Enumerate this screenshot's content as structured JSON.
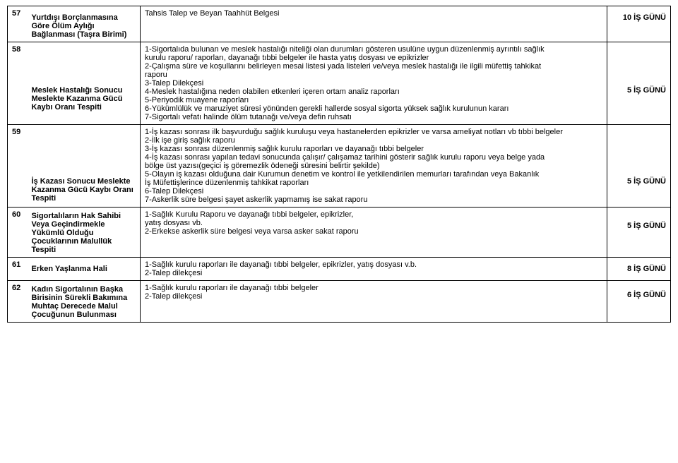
{
  "rows": [
    {
      "no": "57",
      "title": "Yurtdışı Borçlanmasına Göre Ölüm Aylığı Bağlanması (Taşra Birimi)",
      "desc": "Tahsis Talep ve Beyan Taahhüt Belgesi",
      "duration": "10 İŞ GÜNÜ"
    },
    {
      "no": "58",
      "title": "Meslek Hastalığı Sonucu Meslekte Kazanma Gücü Kaybı Oranı Tespiti",
      "desc": "1-Sigortalıda bulunan ve meslek hastalığı niteliği olan durumları gösteren usulüne uygun düzenlenmiş ayrıntılı sağlık\nkurulu raporu/ raporları, dayanağı tıbbi belgeler ile hasta yatış dosyası ve epikrizler\n2-Çalışma süre ve koşullarını belirleyen mesai listesi yada listeleri ve/veya meslek hastalığı ile ilgili müfettiş tahkikat\nraporu\n3-Talep Dilekçesi\n4-Meslek hastalığına neden olabilen etkenleri içeren ortam analiz raporları\n5-Periyodik muayene raporları\n6-Yükümlülük ve maruziyet süresi yönünden gerekli hallerde sosyal sigorta yüksek sağlık kurulunun kararı\n7-Sigortalı vefatı halinde ölüm tutanağı ve/veya defin ruhsatı",
      "duration": "5 İŞ GÜNÜ"
    },
    {
      "no": "59",
      "title": "İş Kazası Sonucu Meslekte Kazanma Gücü Kaybı Oranı Tespiti",
      "desc": "1-İş kazası sonrası ilk başvurduğu sağlık kuruluşu veya hastanelerden epikrizler ve varsa ameliyat notları vb tıbbi belgeler\n2-İlk işe giriş sağlık raporu\n3-İş kazası sonrası düzenlenmiş sağlık kurulu raporları ve dayanağı tıbbi belgeler\n4-İş kazası sonrası yapılan tedavi sonucunda çalışır/ çalışamaz tarihini gösterir sağlık kurulu raporu veya belge yada\nbölge üst yazısı(geçici iş göremezlik ödeneği süresini belirtir şekilde)\n5-Olayın iş kazası olduğuna dair Kurumun denetim ve kontrol ile yetkilendirilen memurları tarafından veya Bakanlık\nİş Müfettişlerince düzenlenmiş tahkikat raporları\n6-Talep Dilekçesi\n7-Askerlik süre belgesi şayet askerlik yapmamış ise sakat raporu",
      "duration": "5 İŞ GÜNÜ"
    },
    {
      "no": "60",
      "title": "Sigortalıların Hak Sahibi Veya Geçindirmekle Yükümlü Olduğu Çocuklarının Malullük Tespiti",
      "desc": "1-Sağlık Kurulu Raporu ve dayanağı tıbbi belgeler, epikrizler,\nyatış dosyası vb.\n2-Erkekse askerlik süre belgesi veya varsa asker sakat raporu",
      "duration": "5 İŞ GÜNÜ"
    },
    {
      "no": "61",
      "title": "Erken Yaşlanma Hali",
      "desc": "1-Sağlık kurulu raporları ile dayanağı tıbbi belgeler, epikrizler, yatış dosyası v.b.\n2-Talep dilekçesi",
      "duration": "8 İŞ GÜNÜ"
    },
    {
      "no": "62",
      "title": "Kadın Sigortalının Başka Birisinin Sürekli Bakımına Muhtaç Derecede Malul Çocuğunun Bulunması",
      "desc": "1-Sağlık kurulu raporları ile dayanağı tıbbi belgeler\n 2-Talep dilekçesi",
      "duration": "6 İŞ GÜNÜ"
    }
  ]
}
